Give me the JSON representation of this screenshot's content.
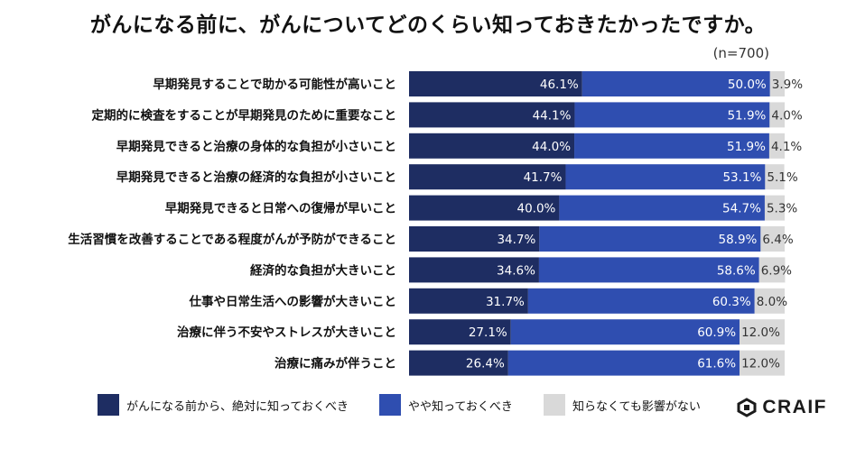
{
  "header": {
    "title": "がんになる前に、がんについてどのくらい知っておきたかったですか。",
    "sample_size": "(n=700)"
  },
  "colors": {
    "series_dark": "#1e2d62",
    "series_mid": "#2f4eb0",
    "series_light": "#d9d9d9",
    "label_light_text": "#ffffff",
    "label_gray_text": "#333333"
  },
  "chart_data": {
    "type": "bar",
    "orientation": "horizontal",
    "stacked": true,
    "title": "がんになる前に、がんについてどのくらい知っておきたかったですか。",
    "xlabel": "",
    "ylabel": "",
    "xlim": [
      0,
      100
    ],
    "unit": "%",
    "categories": [
      "早期発見することで助かる可能性が高いこと",
      "定期的に検査をすることが早期発見のために重要なこと",
      "早期発見できると治療の身体的な負担が小さいこと",
      "早期発見できると治療の経済的な負担が小さいこと",
      "早期発見できると日常への復帰が早いこと",
      "生活習慣を改善することである程度がんが予防ができること",
      "経済的な負担が大きいこと",
      "仕事や日常生活への影響が大きいこと",
      "治療に伴う不安やストレスが大きいこと",
      "治療に痛みが伴うこと"
    ],
    "series": [
      {
        "name": "がんになる前から、絶対に知っておくべき",
        "values": [
          46.1,
          44.1,
          44.0,
          41.7,
          40.0,
          34.7,
          34.6,
          31.7,
          27.1,
          26.4
        ],
        "labels": [
          "46.1%",
          "44.1%",
          "44.0%",
          "41.7%",
          "40.0%",
          "34.7%",
          "34.6%",
          "31.7%",
          "27.1%",
          "26.4%"
        ]
      },
      {
        "name": "やや知っておくべき",
        "values": [
          50.0,
          51.9,
          51.9,
          53.1,
          54.7,
          58.9,
          58.6,
          60.3,
          60.9,
          61.6
        ],
        "labels": [
          "50.0%",
          "51.9%",
          "51.9%",
          "53.1%",
          "54.7%",
          "58.9%",
          "58.6%",
          "60.3%",
          "60.9%",
          "61.6%"
        ]
      },
      {
        "name": "知らなくても影響がない",
        "values": [
          3.9,
          4.0,
          4.1,
          5.1,
          5.3,
          6.4,
          6.9,
          8.0,
          12.0,
          12.0
        ],
        "labels": [
          "3.9%",
          "4.0%",
          "4.1%",
          "5.1%",
          "5.3%",
          "6.4%",
          "6.9%",
          "8.0%",
          "12.0%",
          "12.0%"
        ]
      }
    ],
    "legend": "bottom-left"
  },
  "brand": {
    "logo_text": "CRAIF",
    "logo_icon": "craif-logo-icon"
  }
}
